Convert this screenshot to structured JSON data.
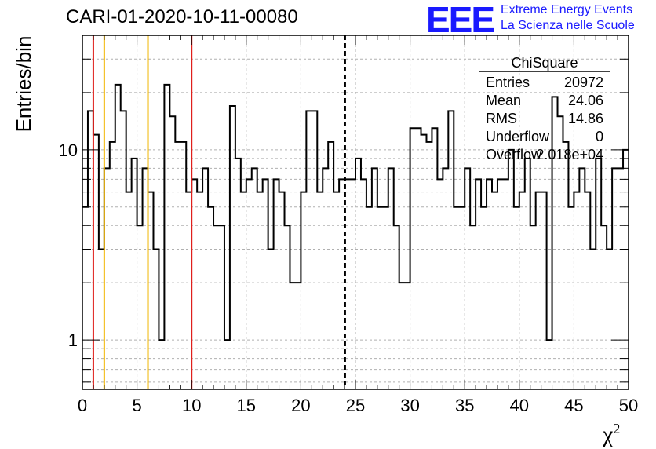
{
  "title": "CARI-01-2020-10-11-00080",
  "logo": {
    "mark": "EEE",
    "line1": "Extreme Energy Events",
    "line2": "La Scienza nelle Scuole",
    "color": "#1a1aff"
  },
  "stats_box": {
    "title": "ChiSquare",
    "rows": [
      {
        "label": "Entries",
        "value": "20972"
      },
      {
        "label": "Mean",
        "value": "24.06"
      },
      {
        "label": "RMS",
        "value": "14.86"
      },
      {
        "label": "Underflow",
        "value": "0"
      },
      {
        "label": "Overflow",
        "value": "2.018e+04"
      }
    ]
  },
  "chart_data": {
    "type": "histogram",
    "ylabel": "Entries/bin",
    "xlabel": "χ",
    "xlabel_superscript": "2",
    "xlim": [
      0,
      50
    ],
    "ylim": [
      0.55,
      40
    ],
    "yscale": "log",
    "grid": true,
    "bin_width": 0.5,
    "x_ticks": [
      0,
      5,
      10,
      15,
      20,
      25,
      30,
      35,
      40,
      45,
      50
    ],
    "x_tick_labels": [
      "0",
      "5",
      "10",
      "15",
      "20",
      "25",
      "30",
      "35",
      "40",
      "45",
      "50"
    ],
    "y_ticks": [
      1,
      10
    ],
    "y_tick_labels": [
      "1",
      "10"
    ],
    "values": [
      5,
      16,
      12,
      3,
      8,
      11,
      22,
      16,
      6,
      9,
      4,
      8,
      6,
      3,
      1,
      22,
      15,
      11,
      11,
      6,
      7,
      6,
      8,
      5,
      4,
      4,
      1,
      17,
      9,
      6,
      7,
      8,
      6,
      7,
      3,
      7,
      6,
      4,
      2,
      2,
      6,
      16,
      16,
      6,
      8,
      11,
      6,
      7,
      7,
      7,
      9,
      7,
      5,
      8,
      5,
      5,
      8,
      4,
      2,
      2,
      13,
      13,
      12,
      11,
      13,
      7,
      8,
      16,
      5,
      5,
      8,
      4,
      7,
      5,
      7,
      6,
      7,
      7,
      10,
      5,
      6,
      9,
      4,
      6,
      6,
      1,
      19,
      15,
      11,
      5,
      6,
      8,
      6,
      3,
      9,
      4,
      3,
      8,
      8,
      10
    ],
    "vertical_lines": [
      {
        "x": 1,
        "color": "#e0201c",
        "style": "solid"
      },
      {
        "x": 2,
        "color": "#f2b705",
        "style": "solid"
      },
      {
        "x": 6,
        "color": "#f2b705",
        "style": "solid"
      },
      {
        "x": 10,
        "color": "#e0201c",
        "style": "solid"
      },
      {
        "x": 24.06,
        "color": "#000000",
        "style": "dashed"
      }
    ]
  }
}
